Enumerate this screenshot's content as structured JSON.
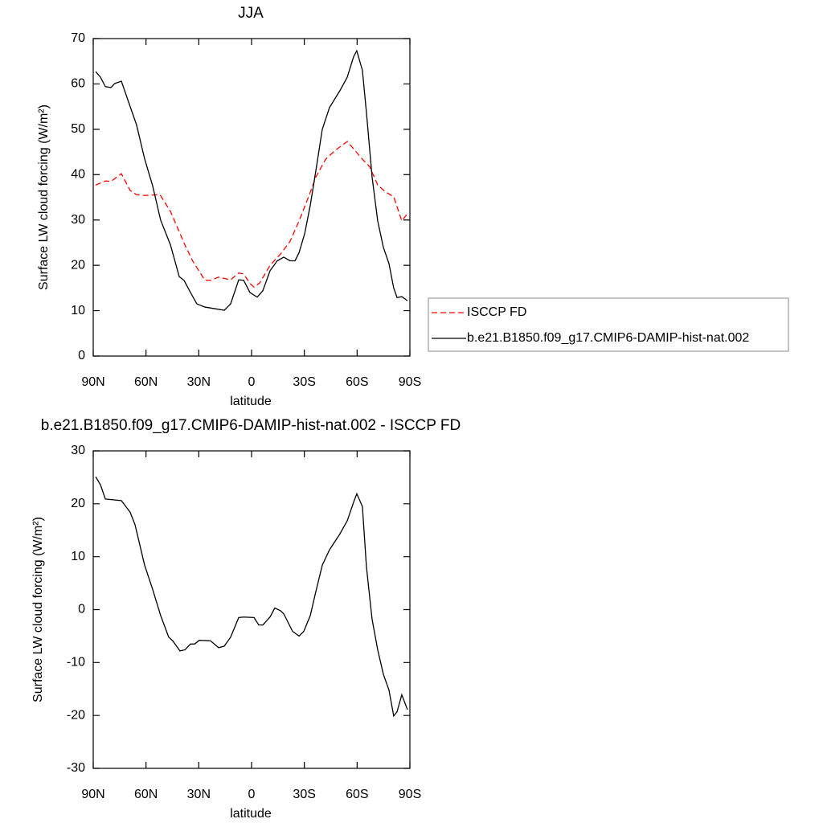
{
  "chart_data": [
    {
      "type": "line",
      "title": "JJA",
      "xlabel": "latitude",
      "ylabel": "Surface LW cloud forcing (W/m²)",
      "xlim": [
        90,
        -90
      ],
      "ylim": [
        0,
        70
      ],
      "xticks": [
        {
          "value": 90,
          "label": "90N"
        },
        {
          "value": 60,
          "label": "60N"
        },
        {
          "value": 30,
          "label": "30N"
        },
        0,
        {
          "value": -30,
          "label": "30S"
        },
        {
          "value": -60,
          "label": "60S"
        },
        {
          "value": -90,
          "label": "90S"
        }
      ],
      "yticks": [
        0,
        10,
        20,
        30,
        40,
        50,
        60,
        70
      ],
      "legend": "right",
      "series": [
        {
          "name": "ISCCP FD",
          "color": "#ff0000",
          "dash": true,
          "x": [
            88.6,
            83.1,
            79.9,
            74.0,
            69.0,
            65.4,
            60.8,
            52.1,
            46.1,
            37.9,
            33.4,
            26.5,
            23.3,
            18.7,
            11.9,
            7.3,
            4.5,
            0.9,
            -1.4,
            -4.6,
            -10.5,
            -16.9,
            -21.9,
            -27.0,
            -32.9,
            -36.6,
            -42.1,
            -48.0,
            -54.4,
            -58.0,
            -63.0,
            -67.1,
            -71.7,
            -75.8,
            -80.8,
            -85.4,
            -88.6
          ],
          "values": [
            37.7,
            38.6,
            38.5,
            40.2,
            36.5,
            35.6,
            35.4,
            35.6,
            31.9,
            24.5,
            20.9,
            16.7,
            16.7,
            17.4,
            16.8,
            18.3,
            18.1,
            16.0,
            15.2,
            16.1,
            20.0,
            22.7,
            25.3,
            29.8,
            35.6,
            39.5,
            43.4,
            45.5,
            47.3,
            45.7,
            43.4,
            41.8,
            37.7,
            36.3,
            35.1,
            29.8,
            31.4
          ]
        },
        {
          "name": "b.e21.B1850.f09_g17.CMIP6-DAMIP-hist-nat.002",
          "color": "#000000",
          "dash": false,
          "x": [
            88.6,
            85.9,
            83.1,
            79.9,
            77.7,
            74.0,
            69.9,
            65.4,
            60.8,
            56.2,
            51.7,
            46.1,
            41.1,
            38.4,
            34.7,
            31.1,
            26.5,
            15.5,
            11.9,
            7.3,
            4.5,
            0.9,
            -3.2,
            -6.4,
            -10.5,
            -14.6,
            -18.3,
            -21.9,
            -24.7,
            -27.0,
            -30.2,
            -33.4,
            -36.6,
            -40.2,
            -44.3,
            -50.2,
            -54.4,
            -58.0,
            -59.8,
            -63.0,
            -65.3,
            -68.5,
            -71.7,
            -74.9,
            -78.1,
            -80.8,
            -82.7,
            -85.4,
            -88.6
          ],
          "values": [
            62.7,
            61.5,
            59.4,
            59.2,
            60.1,
            60.6,
            56.0,
            51.0,
            43.5,
            37.5,
            30.0,
            24.5,
            17.5,
            16.7,
            14.0,
            11.5,
            10.8,
            10.1,
            11.5,
            16.8,
            16.7,
            14.0,
            13.0,
            14.4,
            18.8,
            21.0,
            21.8,
            21.0,
            21.0,
            22.8,
            27.0,
            33.3,
            41.0,
            50.0,
            54.8,
            58.5,
            61.5,
            66.0,
            67.3,
            63.0,
            53.7,
            39.5,
            29.8,
            24.0,
            20.4,
            15.0,
            12.9,
            13.1,
            12.2
          ]
        }
      ]
    },
    {
      "type": "line",
      "title": "b.e21.B1850.f09_g17.CMIP6-DAMIP-hist-nat.002 - ISCCP FD",
      "xlabel": "latitude",
      "ylabel": "Surface LW cloud forcing (W/m²)",
      "xlim": [
        90,
        -90
      ],
      "ylim": [
        -30,
        30
      ],
      "xticks": [
        {
          "value": 90,
          "label": "90N"
        },
        {
          "value": 60,
          "label": "60N"
        },
        {
          "value": 30,
          "label": "30N"
        },
        0,
        {
          "value": -30,
          "label": "30S"
        },
        {
          "value": -60,
          "label": "60S"
        },
        {
          "value": -90,
          "label": "90S"
        }
      ],
      "yticks": [
        -30,
        -20,
        -10,
        0,
        10,
        20,
        30
      ],
      "series": [
        {
          "color": "#000000",
          "dash": false,
          "x": [
            88.6,
            85.9,
            83.1,
            74.0,
            69.0,
            66.2,
            60.8,
            56.2,
            51.7,
            47.1,
            44.8,
            40.7,
            37.9,
            34.7,
            32.4,
            29.7,
            23.3,
            18.7,
            15.5,
            11.9,
            7.3,
            4.5,
            -1.4,
            -4.1,
            -6.4,
            -10.5,
            -13.2,
            -16.4,
            -18.3,
            -23.3,
            -27.0,
            -29.7,
            -33.4,
            -36.6,
            -40.2,
            -44.3,
            -50.2,
            -54.4,
            -58.0,
            -59.8,
            -63.0,
            -65.3,
            -68.5,
            -71.7,
            -74.9,
            -78.1,
            -80.8,
            -82.7,
            -85.4,
            -88.6
          ],
          "values": [
            25.1,
            23.6,
            20.9,
            20.6,
            18.4,
            16.0,
            8.4,
            3.8,
            -1.1,
            -5.2,
            -5.9,
            -7.8,
            -7.6,
            -6.5,
            -6.5,
            -5.8,
            -5.9,
            -7.2,
            -6.9,
            -5.2,
            -1.5,
            -1.4,
            -1.5,
            -2.9,
            -2.9,
            -1.4,
            0.3,
            -0.2,
            -0.8,
            -4.1,
            -5.0,
            -4.1,
            -1.1,
            3.5,
            8.4,
            11.3,
            14.3,
            16.8,
            20.3,
            21.9,
            19.5,
            8.1,
            -1.8,
            -7.6,
            -12.2,
            -15.2,
            -20.1,
            -19.3,
            -16.1,
            -18.9
          ]
        }
      ]
    }
  ]
}
